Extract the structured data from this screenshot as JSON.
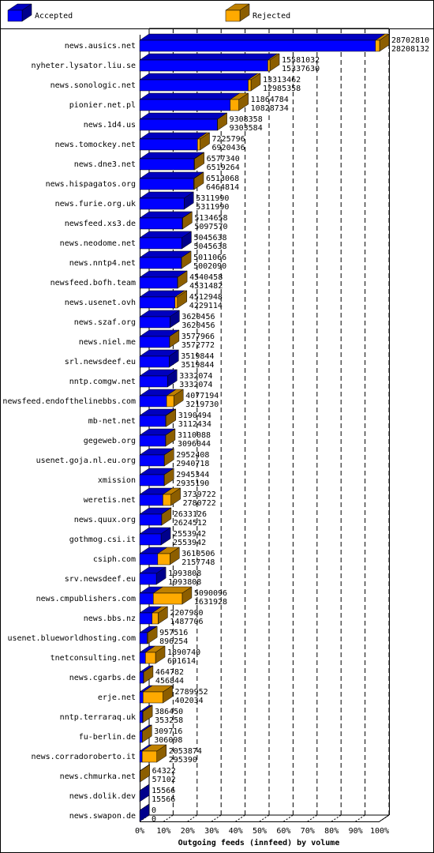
{
  "chart_data": {
    "type": "bar3d",
    "title": "Outgoing feeds (innfeed) by volume",
    "categories": [
      "news.ausics.net",
      "nyheter.lysator.liu.se",
      "news.sonologic.net",
      "pionier.net.pl",
      "news.1d4.us",
      "news.tomockey.net",
      "news.dne3.net",
      "news.hispagatos.org",
      "news.furie.org.uk",
      "newsfeed.xs3.de",
      "news.neodome.net",
      "news.nntp4.net",
      "newsfeed.bofh.team",
      "news.usenet.ovh",
      "news.szaf.org",
      "news.niel.me",
      "srl.newsdeef.eu",
      "nntp.comgw.net",
      "newsfeed.endofthelinebbs.com",
      "mb-net.net",
      "gegeweb.org",
      "usenet.goja.nl.eu.org",
      "xmission",
      "weretis.net",
      "news.quux.org",
      "gothmog.csi.it",
      "csiph.com",
      "srv.newsdeef.eu",
      "news.cmpublishers.com",
      "news.bbs.nz",
      "usenet.blueworldhosting.com",
      "tnetconsulting.net",
      "news.cgarbs.de",
      "erje.net",
      "nntp.terraraq.uk",
      "fu-berlin.de",
      "news.corradoroberto.it",
      "news.chmurka.net",
      "news.dolik.dev",
      "news.swapon.de"
    ],
    "totals": [
      28702810,
      15581032,
      13313462,
      11864784,
      9308358,
      7225796,
      6577340,
      6513068,
      5311990,
      5134658,
      5045638,
      5011066,
      4540458,
      4512948,
      3620456,
      3577966,
      3519844,
      3332074,
      4077194,
      3190494,
      3110088,
      2952408,
      2945344,
      3739722,
      2633126,
      2553942,
      3610506,
      1993808,
      5090096,
      2207980,
      957516,
      1890740,
      464782,
      2789952,
      386450,
      309716,
      2053874,
      64322,
      15566,
      0
    ],
    "series": [
      {
        "name": "Accepted",
        "color": "#0000ff",
        "values": [
          28208132,
          15337630,
          12985358,
          10828734,
          9303584,
          6920436,
          6519264,
          6464814,
          5311990,
          5097570,
          5045638,
          5002090,
          4531482,
          4229114,
          3620456,
          3572772,
          3519844,
          3332074,
          3219730,
          3112434,
          3096044,
          2940718,
          2935190,
          2780722,
          2624512,
          2553942,
          2157748,
          1993808,
          1631928,
          1487706,
          896254,
          691614,
          456844,
          402034,
          353258,
          306098,
          295390,
          57102,
          15566,
          0
        ]
      },
      {
        "name": "Rejected",
        "color": "#ffaa00"
      }
    ],
    "xlim": [
      0,
      100
    ],
    "xticks": [
      {
        "value": 0,
        "label": "0%"
      },
      {
        "value": 10,
        "label": "10%"
      },
      {
        "value": 20,
        "label": "20%"
      },
      {
        "value": 30,
        "label": "30%"
      },
      {
        "value": 40,
        "label": "40%"
      },
      {
        "value": 50,
        "label": "50%"
      },
      {
        "value": 60,
        "label": "60%"
      },
      {
        "value": 70,
        "label": "70%"
      },
      {
        "value": 80,
        "label": "80%"
      },
      {
        "value": 90,
        "label": "90%"
      },
      {
        "value": 100,
        "label": "100%"
      }
    ],
    "grid": true
  }
}
